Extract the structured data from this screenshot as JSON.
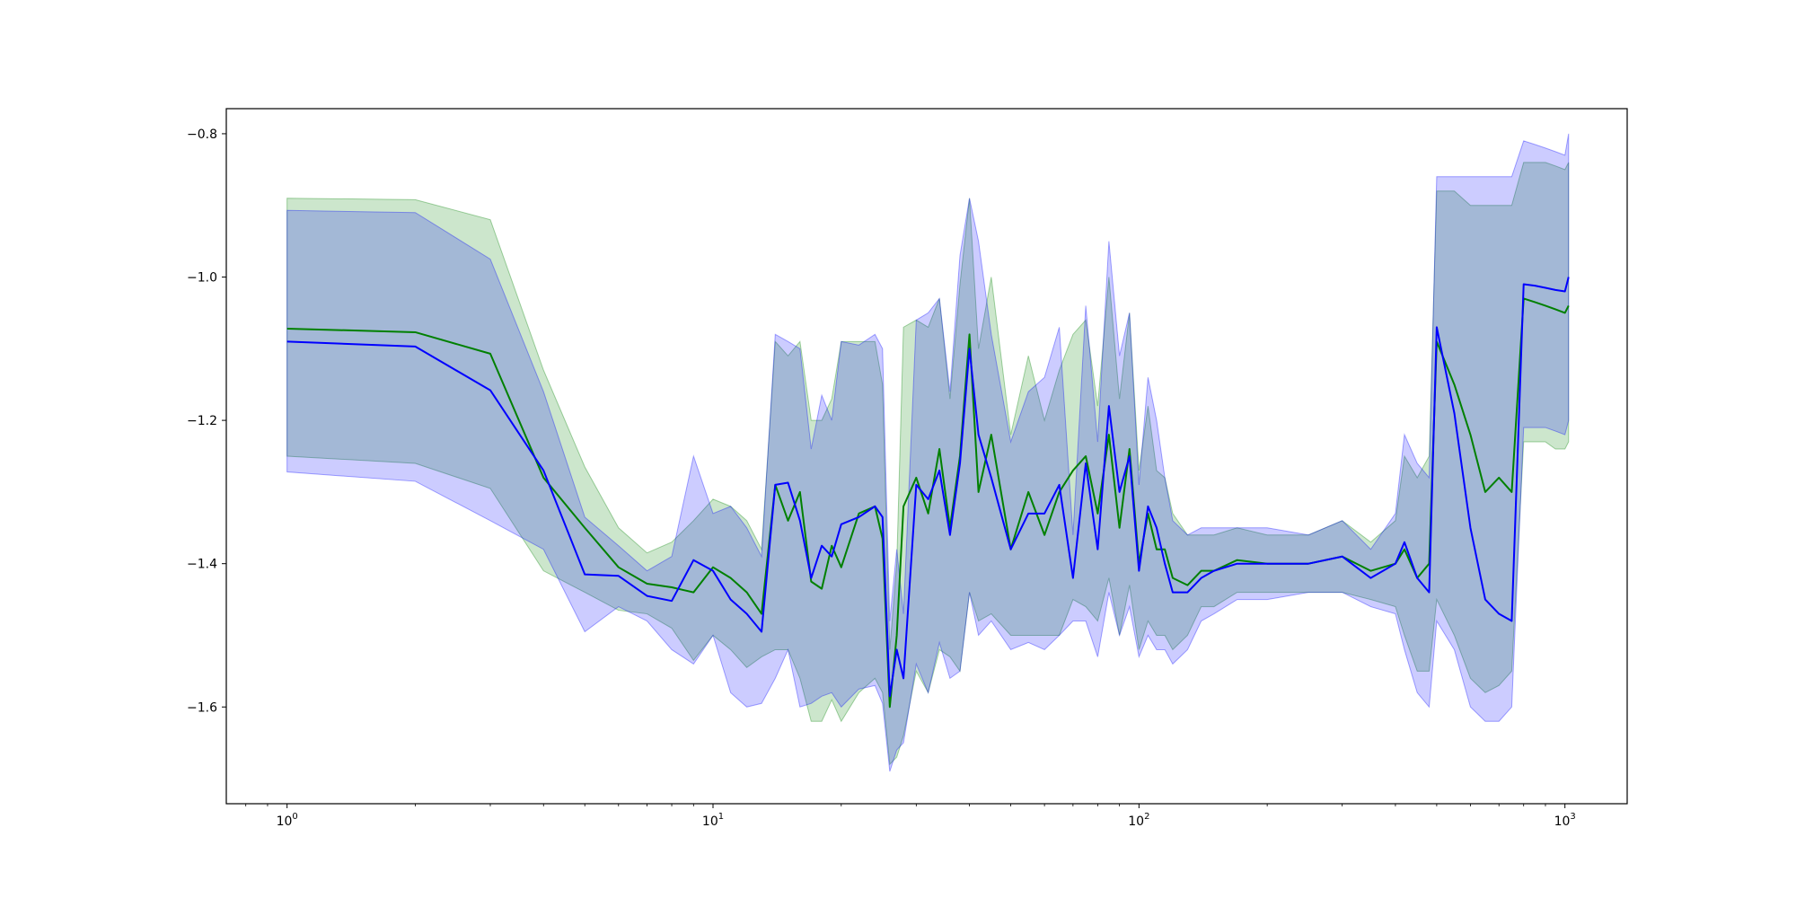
{
  "chart_data": {
    "type": "line",
    "title": "",
    "xlabel": "",
    "ylabel": "",
    "xscale": "log",
    "xlim": [
      0.72,
      1400
    ],
    "ylim": [
      -1.735,
      -0.765
    ],
    "grid": false,
    "legend": "none",
    "x_ticks": [
      {
        "value": 1,
        "base": "10",
        "exp": "0"
      },
      {
        "value": 10,
        "base": "10",
        "exp": "1"
      },
      {
        "value": 100,
        "base": "10",
        "exp": "2"
      },
      {
        "value": 1000,
        "base": "10",
        "exp": "3"
      }
    ],
    "y_ticks": [
      {
        "value": -0.8,
        "label": "−0.8"
      },
      {
        "value": -1.0,
        "label": "−1.0"
      },
      {
        "value": -1.2,
        "label": "−1.2"
      },
      {
        "value": -1.4,
        "label": "−1.4"
      },
      {
        "value": -1.6,
        "label": "−1.6"
      }
    ],
    "series": [
      {
        "color": "#008000",
        "band_color": "#008000",
        "x": [
          1,
          2,
          3,
          4,
          5,
          6,
          7,
          8,
          9,
          10,
          11,
          12,
          13,
          14,
          15,
          16,
          17,
          18,
          19,
          20,
          22,
          24,
          25,
          26,
          27,
          28,
          30,
          32,
          34,
          36,
          38,
          40,
          42,
          45,
          50,
          55,
          60,
          65,
          70,
          75,
          80,
          85,
          90,
          95,
          100,
          105,
          110,
          115,
          120,
          130,
          140,
          150,
          170,
          200,
          250,
          300,
          350,
          400,
          420,
          450,
          480,
          500,
          550,
          600,
          650,
          700,
          750,
          800,
          850,
          900,
          950,
          1000,
          1020
        ],
        "y": [
          -1.072,
          -1.077,
          -1.107,
          -1.28,
          -1.35,
          -1.405,
          -1.428,
          -1.433,
          -1.44,
          -1.405,
          -1.42,
          -1.44,
          -1.47,
          -1.29,
          -1.34,
          -1.3,
          -1.425,
          -1.435,
          -1.375,
          -1.405,
          -1.33,
          -1.32,
          -1.365,
          -1.6,
          -1.5,
          -1.32,
          -1.28,
          -1.33,
          -1.24,
          -1.35,
          -1.25,
          -1.08,
          -1.3,
          -1.22,
          -1.38,
          -1.3,
          -1.36,
          -1.3,
          -1.27,
          -1.25,
          -1.33,
          -1.22,
          -1.35,
          -1.24,
          -1.4,
          -1.33,
          -1.38,
          -1.38,
          -1.42,
          -1.43,
          -1.41,
          -1.41,
          -1.395,
          -1.4,
          -1.4,
          -1.39,
          -1.41,
          -1.4,
          -1.38,
          -1.42,
          -1.4,
          -1.09,
          -1.15,
          -1.22,
          -1.3,
          -1.28,
          -1.3,
          -1.03,
          -1.035,
          -1.04,
          -1.045,
          -1.05,
          -1.04
        ],
        "lower": [
          -1.25,
          -1.26,
          -1.295,
          -1.41,
          -1.44,
          -1.465,
          -1.47,
          -1.49,
          -1.535,
          -1.5,
          -1.52,
          -1.545,
          -1.53,
          -1.52,
          -1.52,
          -1.56,
          -1.62,
          -1.62,
          -1.59,
          -1.62,
          -1.58,
          -1.56,
          -1.58,
          -1.68,
          -1.67,
          -1.64,
          -1.55,
          -1.58,
          -1.52,
          -1.53,
          -1.55,
          -1.44,
          -1.48,
          -1.47,
          -1.5,
          -1.5,
          -1.5,
          -1.5,
          -1.45,
          -1.46,
          -1.48,
          -1.42,
          -1.5,
          -1.43,
          -1.52,
          -1.48,
          -1.5,
          -1.5,
          -1.52,
          -1.5,
          -1.46,
          -1.46,
          -1.44,
          -1.44,
          -1.44,
          -1.44,
          -1.45,
          -1.46,
          -1.5,
          -1.55,
          -1.55,
          -1.45,
          -1.5,
          -1.56,
          -1.58,
          -1.57,
          -1.55,
          -1.23,
          -1.23,
          -1.23,
          -1.24,
          -1.24,
          -1.23
        ],
        "upper": [
          -0.89,
          -0.892,
          -0.92,
          -1.13,
          -1.265,
          -1.35,
          -1.385,
          -1.37,
          -1.34,
          -1.31,
          -1.32,
          -1.34,
          -1.38,
          -1.09,
          -1.11,
          -1.09,
          -1.2,
          -1.2,
          -1.17,
          -1.09,
          -1.09,
          -1.09,
          -1.15,
          -1.52,
          -1.4,
          -1.07,
          -1.06,
          -1.07,
          -1.03,
          -1.17,
          -1.01,
          -0.89,
          -1.1,
          -1.0,
          -1.22,
          -1.11,
          -1.2,
          -1.13,
          -1.08,
          -1.06,
          -1.18,
          -1.0,
          -1.17,
          -1.05,
          -1.27,
          -1.18,
          -1.27,
          -1.28,
          -1.33,
          -1.36,
          -1.36,
          -1.36,
          -1.35,
          -1.36,
          -1.36,
          -1.34,
          -1.37,
          -1.34,
          -1.25,
          -1.28,
          -1.25,
          -0.88,
          -0.88,
          -0.9,
          -0.9,
          -0.9,
          -0.9,
          -0.84,
          -0.84,
          -0.84,
          -0.845,
          -0.85,
          -0.84
        ]
      },
      {
        "color": "#0000ff",
        "band_color": "#0000ff",
        "x": [
          1,
          2,
          3,
          4,
          5,
          6,
          7,
          8,
          9,
          10,
          11,
          12,
          13,
          14,
          15,
          16,
          17,
          18,
          19,
          20,
          22,
          24,
          25,
          26,
          27,
          28,
          30,
          32,
          34,
          36,
          38,
          40,
          42,
          45,
          50,
          55,
          60,
          65,
          70,
          75,
          80,
          85,
          90,
          95,
          100,
          105,
          110,
          115,
          120,
          130,
          140,
          150,
          170,
          200,
          250,
          300,
          350,
          400,
          420,
          450,
          480,
          500,
          550,
          600,
          650,
          700,
          750,
          800,
          850,
          900,
          950,
          1000,
          1020
        ],
        "y": [
          -1.09,
          -1.097,
          -1.158,
          -1.27,
          -1.415,
          -1.417,
          -1.445,
          -1.452,
          -1.395,
          -1.41,
          -1.45,
          -1.47,
          -1.495,
          -1.29,
          -1.287,
          -1.34,
          -1.42,
          -1.375,
          -1.39,
          -1.345,
          -1.335,
          -1.32,
          -1.335,
          -1.585,
          -1.52,
          -1.56,
          -1.29,
          -1.31,
          -1.27,
          -1.36,
          -1.26,
          -1.1,
          -1.22,
          -1.28,
          -1.38,
          -1.33,
          -1.33,
          -1.29,
          -1.42,
          -1.26,
          -1.38,
          -1.18,
          -1.3,
          -1.25,
          -1.41,
          -1.32,
          -1.35,
          -1.4,
          -1.44,
          -1.44,
          -1.42,
          -1.41,
          -1.4,
          -1.4,
          -1.4,
          -1.39,
          -1.42,
          -1.4,
          -1.37,
          -1.42,
          -1.44,
          -1.07,
          -1.19,
          -1.35,
          -1.45,
          -1.47,
          -1.48,
          -1.01,
          -1.012,
          -1.015,
          -1.018,
          -1.02,
          -1.0
        ],
        "lower": [
          -1.272,
          -1.285,
          -1.34,
          -1.38,
          -1.495,
          -1.46,
          -1.48,
          -1.52,
          -1.54,
          -1.5,
          -1.58,
          -1.6,
          -1.595,
          -1.56,
          -1.52,
          -1.6,
          -1.595,
          -1.585,
          -1.58,
          -1.6,
          -1.575,
          -1.57,
          -1.595,
          -1.69,
          -1.66,
          -1.65,
          -1.54,
          -1.58,
          -1.51,
          -1.56,
          -1.55,
          -1.44,
          -1.5,
          -1.48,
          -1.52,
          -1.51,
          -1.52,
          -1.5,
          -1.48,
          -1.48,
          -1.53,
          -1.44,
          -1.5,
          -1.46,
          -1.53,
          -1.5,
          -1.52,
          -1.52,
          -1.54,
          -1.52,
          -1.48,
          -1.47,
          -1.45,
          -1.45,
          -1.44,
          -1.44,
          -1.46,
          -1.47,
          -1.52,
          -1.58,
          -1.6,
          -1.48,
          -1.52,
          -1.6,
          -1.62,
          -1.62,
          -1.6,
          -1.21,
          -1.21,
          -1.21,
          -1.215,
          -1.22,
          -1.2
        ],
        "upper": [
          -0.907,
          -0.91,
          -0.975,
          -1.16,
          -1.335,
          -1.375,
          -1.41,
          -1.39,
          -1.25,
          -1.33,
          -1.32,
          -1.35,
          -1.39,
          -1.08,
          -1.09,
          -1.1,
          -1.24,
          -1.165,
          -1.2,
          -1.09,
          -1.095,
          -1.08,
          -1.1,
          -1.48,
          -1.38,
          -1.47,
          -1.06,
          -1.05,
          -1.03,
          -1.16,
          -0.97,
          -0.89,
          -0.95,
          -1.08,
          -1.23,
          -1.16,
          -1.14,
          -1.07,
          -1.36,
          -1.04,
          -1.23,
          -0.95,
          -1.11,
          -1.05,
          -1.29,
          -1.14,
          -1.2,
          -1.28,
          -1.34,
          -1.36,
          -1.35,
          -1.35,
          -1.35,
          -1.35,
          -1.36,
          -1.34,
          -1.38,
          -1.33,
          -1.22,
          -1.26,
          -1.28,
          -0.86,
          -0.86,
          -0.86,
          -0.86,
          -0.86,
          -0.86,
          -0.81,
          -0.815,
          -0.82,
          -0.825,
          -0.83,
          -0.8
        ]
      }
    ]
  }
}
